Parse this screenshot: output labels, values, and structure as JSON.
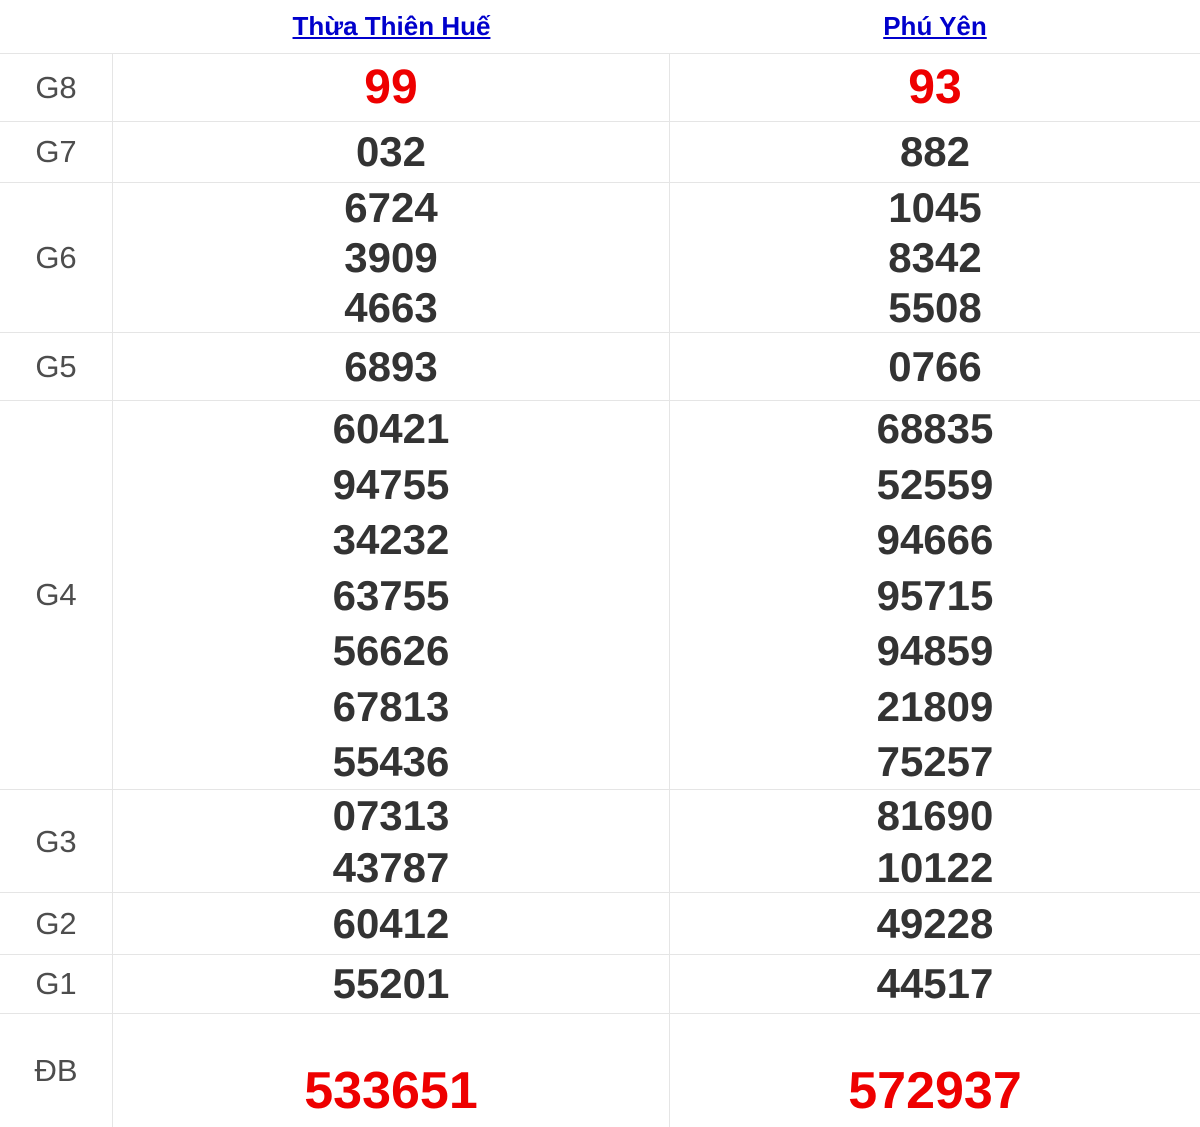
{
  "header": {
    "columns": [
      {
        "label": "Thừa Thiên Huế"
      },
      {
        "label": "Phú Yên"
      }
    ]
  },
  "table": {
    "prize_rows": [
      {
        "label": "G8",
        "style": "red",
        "tth": [
          "99"
        ],
        "py": [
          "93"
        ]
      },
      {
        "label": "G7",
        "style": "normal",
        "tth": [
          "032"
        ],
        "py": [
          "882"
        ]
      },
      {
        "label": "G6",
        "style": "normal",
        "tth": [
          "6724",
          "3909",
          "4663"
        ],
        "py": [
          "1045",
          "8342",
          "5508"
        ]
      },
      {
        "label": "G5",
        "style": "normal",
        "tth": [
          "6893"
        ],
        "py": [
          "0766"
        ]
      },
      {
        "label": "G4",
        "style": "normal",
        "tth": [
          "60421",
          "94755",
          "34232",
          "63755",
          "56626",
          "67813",
          "55436"
        ],
        "py": [
          "68835",
          "52559",
          "94666",
          "95715",
          "94859",
          "21809",
          "75257"
        ]
      },
      {
        "label": "G3",
        "style": "normal",
        "tth": [
          "07313",
          "43787"
        ],
        "py": [
          "81690",
          "10122"
        ]
      },
      {
        "label": "G2",
        "style": "normal",
        "tth": [
          "60412"
        ],
        "py": [
          "49228"
        ]
      },
      {
        "label": "G1",
        "style": "normal",
        "tth": [
          "55201"
        ],
        "py": [
          "44517"
        ]
      },
      {
        "label": "ĐB",
        "style": "red-large",
        "tth": [
          "533651"
        ],
        "py": [
          "572937"
        ]
      }
    ],
    "colors": {
      "link_blue": "#0000cc",
      "number": "#333333",
      "highlight_red": "#ee0000",
      "label_gray": "#4d4d4d",
      "border": "#e5e5e5"
    }
  }
}
